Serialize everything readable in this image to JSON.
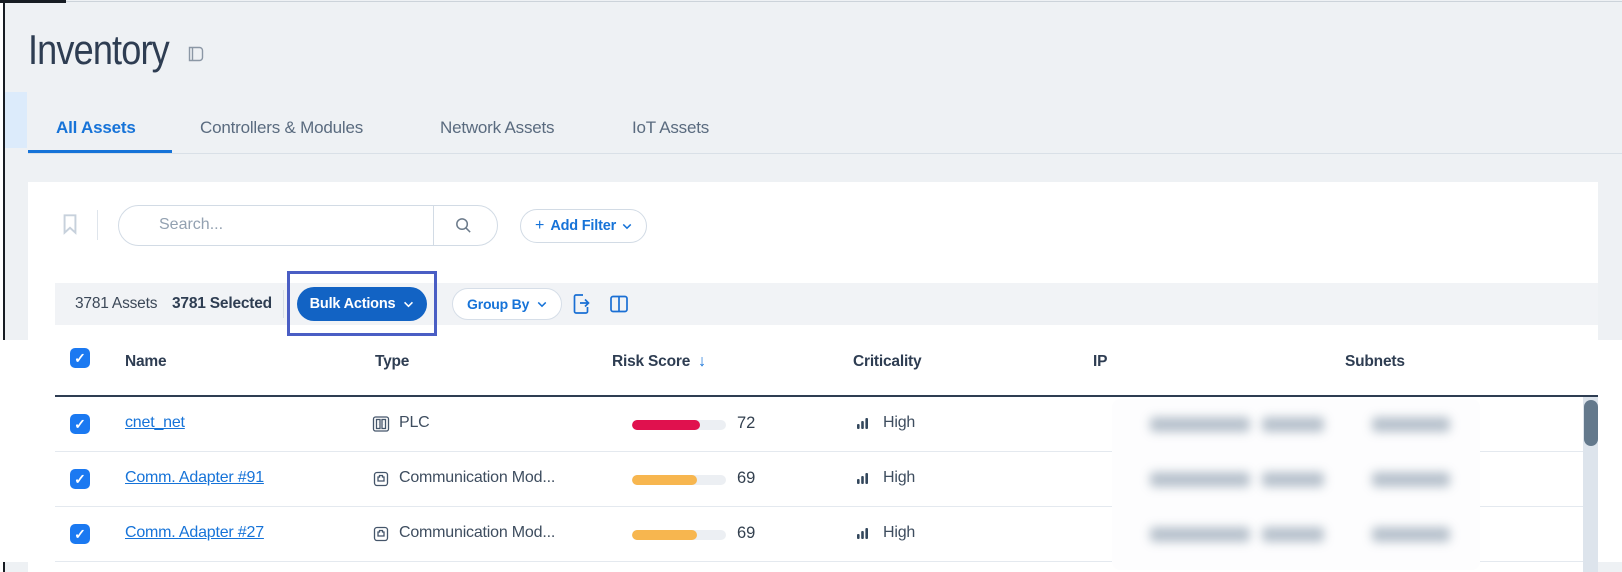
{
  "page": {
    "title": "Inventory"
  },
  "tabs": [
    {
      "label": "All Assets",
      "active": true
    },
    {
      "label": "Controllers & Modules",
      "active": false
    },
    {
      "label": "Network Assets",
      "active": false
    },
    {
      "label": "IoT Assets",
      "active": false
    }
  ],
  "search": {
    "placeholder": "Search..."
  },
  "filter": {
    "plus": "+",
    "label": "Add Filter"
  },
  "toolbar": {
    "assets_count": "3781 Assets",
    "selected_count": "3781 Selected",
    "bulk_actions_label": "Bulk Actions",
    "group_by_label": "Group By"
  },
  "table": {
    "headers": {
      "name": "Name",
      "type": "Type",
      "risk_score": "Risk Score",
      "sort_arrow": "↓",
      "criticality": "Criticality",
      "ip": "IP",
      "subnets": "Subnets"
    },
    "rows": [
      {
        "name": "cnet_net",
        "type": "PLC",
        "type_icon": "plc-rack-icon",
        "risk_score": "72",
        "risk_percent": 72,
        "risk_color": "#e0114e",
        "criticality": "High",
        "selected": true,
        "ip_redacted": true,
        "subnet_redacted": true
      },
      {
        "name": "Comm. Adapter #91",
        "type": "Communication Mod...",
        "type_icon": "comm-module-icon",
        "risk_score": "69",
        "risk_percent": 69,
        "risk_color": "#f7b64f",
        "criticality": "High",
        "selected": true,
        "ip_redacted": true,
        "subnet_redacted": true
      },
      {
        "name": "Comm. Adapter #27",
        "type": "Communication Mod...",
        "type_icon": "comm-module-icon",
        "risk_score": "69",
        "risk_percent": 69,
        "risk_color": "#f7b64f",
        "criticality": "High",
        "selected": true,
        "ip_redacted": true,
        "subnet_redacted": true
      }
    ],
    "checkmark": "✓"
  },
  "colors": {
    "accent_blue": "#1673d8",
    "bulk_button_blue": "#1263c4",
    "highlight_border": "#4a5ec4",
    "risk_high_red": "#e0114e",
    "risk_medium_amber": "#f7b64f",
    "criticality_icon": "#33475c",
    "page_background": "#eef1f4"
  }
}
